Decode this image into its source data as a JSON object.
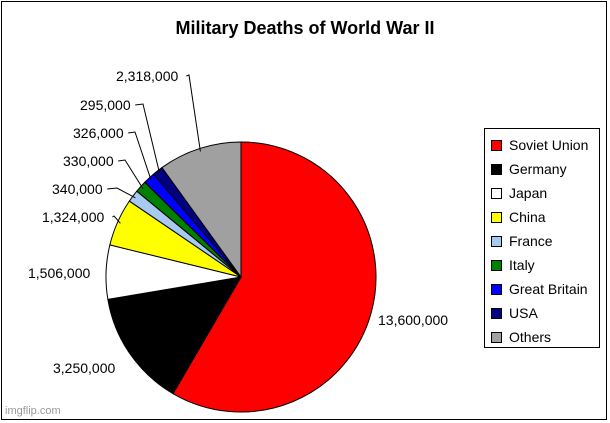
{
  "chart_data": {
    "type": "pie",
    "title": "Military Deaths of World War II",
    "start_angle_deg": 90,
    "direction": "clockwise",
    "categories": [
      "Soviet Union",
      "Germany",
      "Japan",
      "China",
      "France",
      "Italy",
      "Great Britain",
      "USA",
      "Others"
    ],
    "values": [
      13600000,
      3250000,
      1506000,
      1324000,
      340000,
      330000,
      326000,
      295000,
      2318000
    ],
    "value_labels": [
      "13,600,000",
      "3,250,000",
      "1,506,000",
      "1,324,000",
      "340,000",
      "330,000",
      "326,000",
      "295,000",
      "2,318,000"
    ],
    "colors": [
      "#ff0000",
      "#000000",
      "#ffffff",
      "#ffff00",
      "#a6caf0",
      "#008000",
      "#0000ff",
      "#000080",
      "#a0a0a0"
    ],
    "legend_position": "right"
  },
  "watermark": "imgflip.com"
}
